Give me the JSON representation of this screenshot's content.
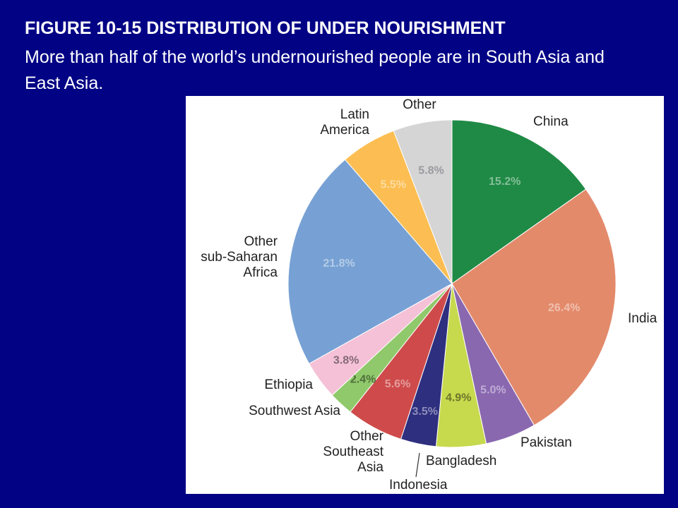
{
  "chart_data": {
    "type": "pie",
    "title": "FIGURE 10-15 DISTRIBUTION OF UNDER NOURISHMENT",
    "subtitle": "More than half of the world’s undernourished people are in South Asia and East Asia.",
    "categories": [
      "China",
      "India",
      "Pakistan",
      "Bangladesh",
      "Indonesia",
      "Other\nSoutheast\nAsia",
      "Southwest Asia",
      "Ethiopia",
      "Other\nsub-Saharan\nAfrica",
      "Latin\nAmerica",
      "Other"
    ],
    "values": [
      15.2,
      26.4,
      5.0,
      4.9,
      3.5,
      5.6,
      2.4,
      3.8,
      21.8,
      5.5,
      5.8
    ],
    "value_labels": [
      "15.2%",
      "26.4%",
      "5.0%",
      "4.9%",
      "3.5%",
      "5.6%",
      "2.4%",
      "3.8%",
      "21.8%",
      "5.5%",
      "5.8%"
    ],
    "colors": [
      "#1f8a45",
      "#e38a6b",
      "#8a68b0",
      "#c7d94d",
      "#2f2f80",
      "#cf4b4b",
      "#90c96b",
      "#f4c1d6",
      "#77a1d4",
      "#fcbe52",
      "#d5d5d5"
    ]
  }
}
